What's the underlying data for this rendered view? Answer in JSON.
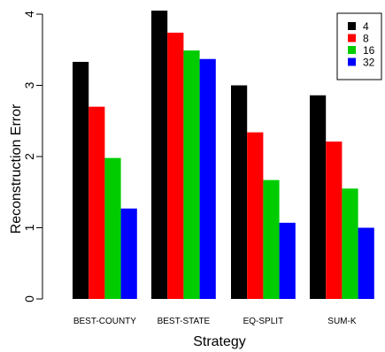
{
  "chart_data": {
    "type": "bar",
    "xlabel": "Strategy",
    "ylabel": "Reconstruction Error",
    "ylim": [
      0,
      4
    ],
    "yticks": [
      "0",
      "1",
      "2",
      "3",
      "4"
    ],
    "categories": [
      "BEST-COUNTY",
      "BEST-STATE",
      "EQ-SPLIT",
      "SUM-K"
    ],
    "series": [
      {
        "name": "4",
        "color": "#000000",
        "values": [
          3.33,
          4.05,
          3.0,
          2.86
        ]
      },
      {
        "name": "8",
        "color": "#ff0000",
        "values": [
          2.7,
          3.74,
          2.34,
          2.21
        ]
      },
      {
        "name": "16",
        "color": "#00cc00",
        "values": [
          1.98,
          3.49,
          1.67,
          1.55
        ]
      },
      {
        "name": "32",
        "color": "#0000ff",
        "values": [
          1.27,
          3.37,
          1.07,
          1.0
        ]
      }
    ],
    "legend_position": "top-right",
    "grid": false
  }
}
